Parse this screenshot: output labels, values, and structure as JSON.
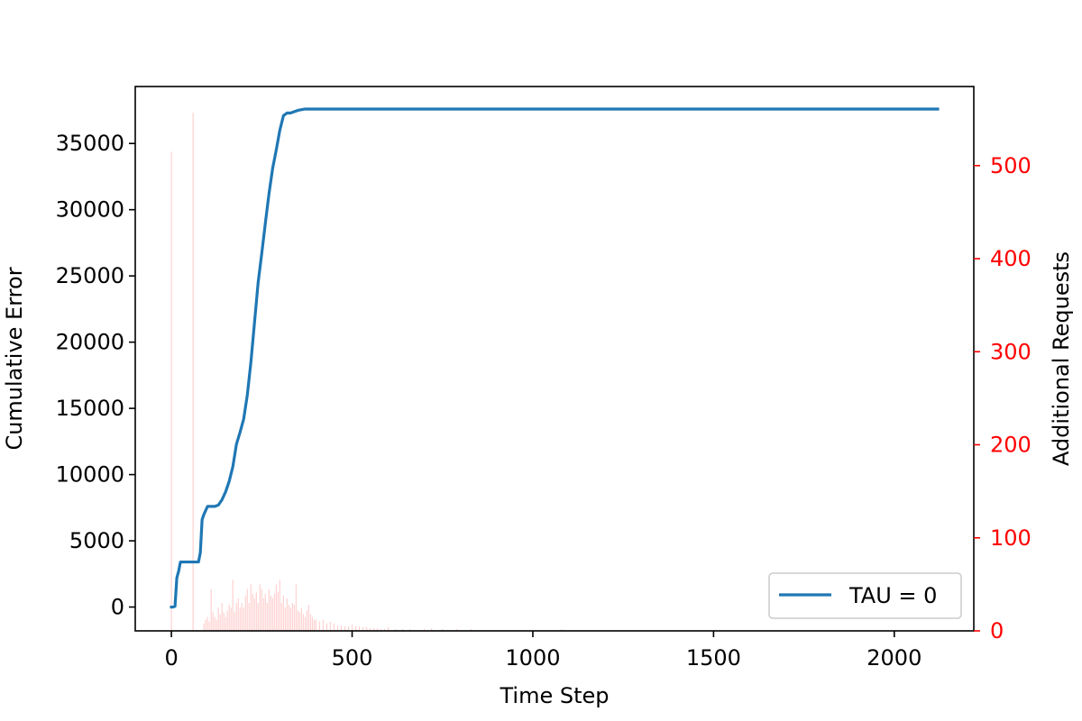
{
  "chart_data": {
    "type": "line",
    "title": "",
    "xlabel": "Time Step",
    "ylabel": "Cumulative Error",
    "y2label": "Additional Requests",
    "xlim": [
      -100,
      2220
    ],
    "ylim": [
      -1800,
      39300
    ],
    "y2lim": [
      0,
      585
    ],
    "x_ticks": [
      0,
      500,
      1000,
      1500,
      2000
    ],
    "y_ticks": [
      0,
      5000,
      10000,
      15000,
      20000,
      25000,
      30000,
      35000
    ],
    "y2_ticks": [
      0,
      100,
      200,
      300,
      400,
      500
    ],
    "grid": false,
    "legend_position": "lower right",
    "colors": {
      "line": "#1f77b4",
      "bars": "#ff0000",
      "right_axis": "#ff0000",
      "frame": "#000000"
    },
    "series": [
      {
        "name": "TAU = 0",
        "axis": "left",
        "kind": "line",
        "x": [
          0,
          5,
          10,
          15,
          20,
          25,
          30,
          40,
          50,
          60,
          65,
          70,
          75,
          80,
          85,
          90,
          100,
          110,
          120,
          130,
          140,
          150,
          160,
          170,
          180,
          190,
          200,
          210,
          220,
          230,
          240,
          250,
          260,
          270,
          280,
          290,
          300,
          310,
          320,
          330,
          340,
          350,
          360,
          370,
          380,
          400,
          420,
          450,
          500,
          600,
          800,
          1000,
          1500,
          2000,
          2120
        ],
        "y": [
          0,
          0,
          50,
          2200,
          2700,
          3400,
          3400,
          3400,
          3400,
          3400,
          3400,
          3400,
          3400,
          4100,
          6600,
          7000,
          7600,
          7600,
          7600,
          7700,
          8100,
          8700,
          9500,
          10600,
          12300,
          13200,
          14200,
          16000,
          18500,
          21500,
          24500,
          26700,
          29000,
          31200,
          33100,
          34500,
          36000,
          37100,
          37300,
          37300,
          37400,
          37500,
          37550,
          37600,
          37600,
          37600,
          37600,
          37600,
          37600,
          37600,
          37600,
          37600,
          37600,
          37600,
          37600
        ]
      },
      {
        "name": "",
        "axis": "right",
        "kind": "bar",
        "x": [
          0,
          60,
          90,
          95,
          100,
          105,
          110,
          115,
          120,
          125,
          130,
          135,
          140,
          145,
          150,
          155,
          160,
          165,
          170,
          175,
          180,
          185,
          190,
          195,
          200,
          205,
          210,
          215,
          220,
          225,
          230,
          235,
          240,
          245,
          250,
          255,
          260,
          265,
          270,
          275,
          280,
          285,
          290,
          295,
          300,
          305,
          310,
          315,
          320,
          325,
          330,
          335,
          340,
          345,
          350,
          355,
          360,
          365,
          370,
          375,
          380,
          385,
          390,
          395,
          400,
          410,
          420,
          430,
          440,
          450,
          460,
          470,
          480,
          490,
          500,
          510,
          520,
          530,
          540,
          550,
          560,
          570,
          580,
          590,
          600,
          620,
          640,
          660,
          700,
          720,
          750,
          790,
          830,
          1080
        ],
        "y": [
          515,
          557,
          8,
          12,
          15,
          10,
          45,
          20,
          15,
          12,
          25,
          18,
          30,
          20,
          15,
          22,
          28,
          25,
          55,
          20,
          30,
          35,
          25,
          30,
          25,
          38,
          45,
          30,
          50,
          40,
          35,
          42,
          30,
          50,
          45,
          35,
          40,
          30,
          45,
          38,
          35,
          40,
          50,
          42,
          55,
          30,
          38,
          25,
          35,
          28,
          25,
          30,
          28,
          50,
          22,
          20,
          25,
          18,
          15,
          22,
          28,
          18,
          15,
          12,
          12,
          10,
          12,
          8,
          10,
          8,
          6,
          6,
          5,
          5,
          7,
          5,
          5,
          4,
          4,
          3,
          3,
          3,
          2,
          2,
          4,
          2,
          2,
          2,
          2,
          3,
          2,
          2,
          2,
          2
        ]
      }
    ]
  }
}
